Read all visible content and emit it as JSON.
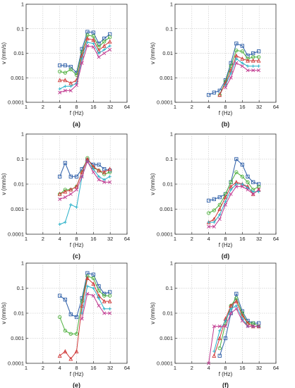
{
  "figure": {
    "marker_colors": [
      "#2e5fa8",
      "#4caf3b",
      "#d03a3a",
      "#27b0c8",
      "#c0388f"
    ],
    "marker_shapes": [
      "square",
      "circle",
      "triangle",
      "plus",
      "x"
    ]
  },
  "chart_data": [
    {
      "type": "line",
      "panel_label": "(a)",
      "xlabel": "f (Hz)",
      "ylabel": "v (mm/s)",
      "x_scale": "log2",
      "y_scale": "log10",
      "xlim": [
        1,
        64
      ],
      "ylim": [
        0.0001,
        1
      ],
      "xticks": [
        "1",
        "2",
        "4",
        "8",
        "16",
        "32",
        "64"
      ],
      "yticks": [
        "0.0001",
        "0.001",
        "0.01",
        "0.1",
        "1"
      ],
      "grid": true,
      "x": [
        4,
        5,
        6.3,
        8,
        10,
        12.5,
        16,
        20,
        25,
        31.5
      ],
      "series": [
        {
          "values": [
            0.0032,
            0.0032,
            0.0028,
            0.0016,
            0.015,
            0.075,
            0.07,
            0.025,
            0.04,
            0.06
          ]
        },
        {
          "values": [
            0.0018,
            0.0016,
            0.0022,
            0.0013,
            0.011,
            0.055,
            0.05,
            0.018,
            0.03,
            0.045
          ]
        },
        {
          "values": [
            0.0008,
            0.0008,
            0.0006,
            0.0008,
            0.008,
            0.04,
            0.035,
            0.013,
            0.02,
            0.03
          ]
        },
        {
          "values": [
            0.00035,
            0.00045,
            0.00045,
            0.0006,
            0.006,
            0.028,
            0.025,
            0.01,
            0.014,
            0.02
          ]
        },
        {
          "values": [
            0.00025,
            0.0003,
            0.0003,
            0.0005,
            0.004,
            0.02,
            0.018,
            0.007,
            0.01,
            0.014
          ]
        }
      ]
    },
    {
      "type": "line",
      "panel_label": "(b)",
      "xlabel": "f (Hz)",
      "ylabel": "v (mm/s)",
      "x_scale": "log2",
      "y_scale": "log10",
      "xlim": [
        1,
        64
      ],
      "ylim": [
        0.0001,
        1
      ],
      "xticks": [
        "1",
        "2",
        "4",
        "8",
        "16",
        "32",
        "64"
      ],
      "yticks": [
        "0.0001",
        "0.001",
        "0.01",
        "0.1",
        "1"
      ],
      "grid": true,
      "x": [
        4,
        5,
        6.3,
        8,
        10,
        12.5,
        16,
        20,
        25,
        31.5
      ],
      "series": [
        {
          "values": [
            0.0002,
            0.00025,
            0.0003,
            0.0008,
            0.004,
            0.025,
            0.02,
            0.008,
            0.01,
            0.012
          ]
        },
        {
          "values": [
            null,
            null,
            0.0002,
            0.0007,
            0.003,
            0.013,
            0.012,
            0.006,
            0.007,
            0.007
          ]
        },
        {
          "values": [
            null,
            null,
            0.0002,
            0.0006,
            0.002,
            0.008,
            0.006,
            0.005,
            0.005,
            0.005
          ]
        },
        {
          "values": [
            null,
            null,
            null,
            0.0005,
            0.0015,
            0.006,
            0.004,
            0.003,
            0.003,
            0.003
          ]
        },
        {
          "values": [
            null,
            null,
            null,
            0.0004,
            0.001,
            0.004,
            0.003,
            0.002,
            0.002,
            0.002
          ]
        }
      ]
    },
    {
      "type": "line",
      "panel_label": "(c)",
      "xlabel": "f (Hz)",
      "ylabel": "v (mm/s)",
      "x_scale": "log2",
      "y_scale": "log10",
      "xlim": [
        1,
        64
      ],
      "ylim": [
        0.0001,
        1
      ],
      "xticks": [
        "1",
        "2",
        "4",
        "8",
        "16",
        "32",
        "64"
      ],
      "yticks": [
        "0.0001",
        "0.001",
        "0.01",
        "0.1",
        "1"
      ],
      "grid": true,
      "x": [
        4,
        5,
        6.3,
        8,
        10,
        12.5,
        16,
        20,
        25,
        31.5
      ],
      "series": [
        {
          "values": [
            0.02,
            0.07,
            0.02,
            0.02,
            0.04,
            0.09,
            0.06,
            0.06,
            0.04,
            0.035
          ]
        },
        {
          "values": [
            0.004,
            0.006,
            0.006,
            0.008,
            0.03,
            0.11,
            0.045,
            0.035,
            0.025,
            0.03
          ]
        },
        {
          "values": [
            0.004,
            0.005,
            0.006,
            0.008,
            0.03,
            0.1,
            0.05,
            0.035,
            0.03,
            0.04
          ]
        },
        {
          "values": [
            0.00025,
            0.0003,
            0.0015,
            0.0012,
            0.02,
            0.08,
            0.04,
            0.02,
            0.015,
            0.02
          ]
        },
        {
          "values": [
            0.0025,
            0.003,
            0.004,
            0.006,
            0.02,
            0.08,
            0.03,
            0.015,
            0.012,
            0.012
          ]
        }
      ]
    },
    {
      "type": "line",
      "panel_label": "(d)",
      "xlabel": "f (Hz)",
      "ylabel": "v (mm/s)",
      "x_scale": "log2",
      "y_scale": "log10",
      "xlim": [
        1,
        64
      ],
      "ylim": [
        0.0001,
        1
      ],
      "xticks": [
        "1",
        "2",
        "4",
        "8",
        "16",
        "32",
        "64"
      ],
      "yticks": [
        "0.0001",
        "0.001",
        "0.01",
        "0.1",
        "1"
      ],
      "grid": true,
      "x": [
        4,
        5,
        6.3,
        8,
        10,
        12.5,
        16,
        20,
        25,
        31.5
      ],
      "series": [
        {
          "values": [
            0.0022,
            0.0025,
            0.003,
            0.004,
            0.012,
            0.1,
            0.06,
            0.02,
            0.012,
            0.01
          ]
        },
        {
          "values": [
            0.0007,
            0.0009,
            0.0015,
            0.004,
            0.012,
            0.03,
            0.02,
            0.012,
            0.006,
            0.008
          ]
        },
        {
          "values": [
            0.0003,
            0.0004,
            0.001,
            0.003,
            0.008,
            0.012,
            0.01,
            0.008,
            0.004,
            0.006
          ]
        },
        {
          "values": [
            0.0003,
            0.0003,
            0.0006,
            0.002,
            0.006,
            0.01,
            0.01,
            0.007,
            0.005,
            0.005
          ]
        },
        {
          "values": [
            0.0002,
            0.0002,
            0.0004,
            0.0015,
            0.004,
            0.008,
            0.008,
            0.006,
            0.004,
            0.006
          ]
        }
      ]
    },
    {
      "type": "line",
      "panel_label": "(e)",
      "xlabel": "f (Hz)",
      "ylabel": "v (mm/s)",
      "x_scale": "log2",
      "y_scale": "log10",
      "xlim": [
        1,
        64
      ],
      "ylim": [
        0.0001,
        1
      ],
      "xticks": [
        "1",
        "2",
        "4",
        "8",
        "16",
        "32",
        "64"
      ],
      "yticks": [
        "0.0001",
        "0.001",
        "0.01",
        "0.1",
        "1"
      ],
      "grid": true,
      "x": [
        4,
        5,
        6.3,
        8,
        10,
        12.5,
        16,
        20,
        25,
        31.5
      ],
      "series": [
        {
          "values": [
            0.05,
            0.035,
            0.009,
            0.007,
            0.04,
            0.4,
            0.35,
            0.12,
            0.06,
            0.07
          ]
        },
        {
          "values": [
            0.007,
            0.002,
            0.0015,
            0.0015,
            0.03,
            0.3,
            0.25,
            0.08,
            0.05,
            0.05
          ]
        },
        {
          "values": [
            0.0002,
            0.0003,
            0.00015,
            0.0003,
            0.02,
            0.25,
            0.15,
            0.05,
            0.03,
            0.03
          ]
        },
        {
          "values": [
            null,
            null,
            null,
            null,
            0.01,
            0.12,
            0.1,
            0.04,
            0.015,
            0.015
          ]
        },
        {
          "values": [
            null,
            null,
            null,
            null,
            0.006,
            0.06,
            0.05,
            0.02,
            0.01,
            0.01
          ]
        }
      ]
    },
    {
      "type": "line",
      "panel_label": "(f)",
      "xlabel": "f (Hz)",
      "ylabel": "v (mm/s)",
      "x_scale": "log2",
      "y_scale": "log10",
      "xlim": [
        1,
        64
      ],
      "ylim": [
        0.0001,
        1
      ],
      "xticks": [
        "1",
        "2",
        "4",
        "8",
        "16",
        "32",
        "64"
      ],
      "yticks": [
        "0.0001",
        "0.001",
        "0.01",
        "0.1",
        "1"
      ],
      "grid": true,
      "x": [
        4,
        5,
        6.3,
        8,
        10,
        12.5,
        16,
        20,
        25,
        31.5
      ],
      "series": [
        {
          "values": [
            null,
            null,
            0.0002,
            0.001,
            0.01,
            0.06,
            0.012,
            0.005,
            0.004,
            0.004
          ]
        },
        {
          "values": [
            null,
            null,
            0.0004,
            0.004,
            0.02,
            0.04,
            0.01,
            0.004,
            0.004,
            0.003
          ]
        },
        {
          "values": [
            null,
            0.0002,
            0.001,
            0.006,
            0.02,
            0.03,
            0.008,
            0.004,
            0.003,
            0.003
          ]
        },
        {
          "values": [
            null,
            0.0003,
            0.002,
            0.005,
            0.015,
            0.02,
            0.006,
            0.003,
            0.003,
            0.003
          ]
        },
        {
          "values": [
            0.0001,
            0.003,
            0.003,
            0.003,
            0.01,
            0.015,
            0.005,
            0.003,
            0.003,
            0.003
          ]
        }
      ]
    }
  ]
}
